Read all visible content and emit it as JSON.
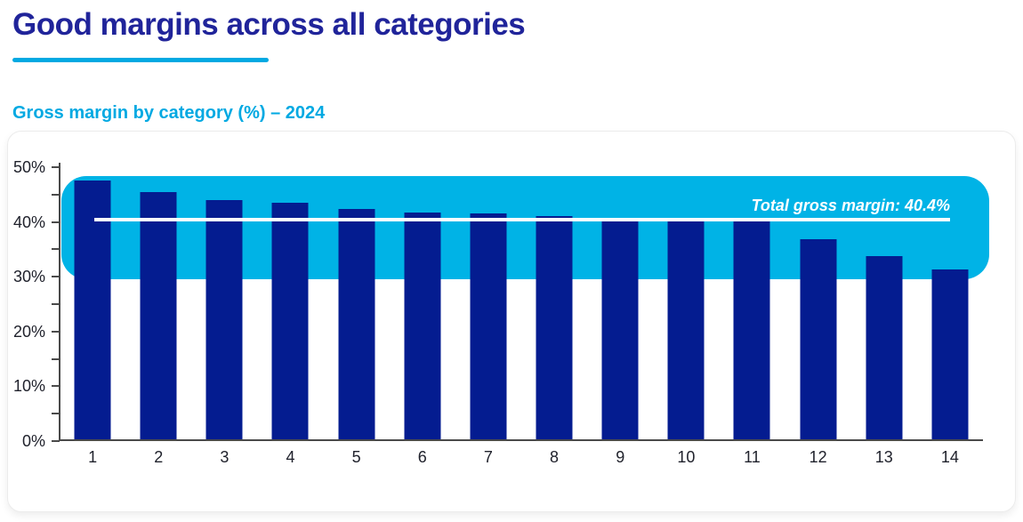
{
  "header": {
    "title": "Good margins across all categories",
    "subtitle": "Gross margin by category (%) – 2024"
  },
  "chart_data": {
    "type": "bar",
    "title": "Gross margin by category (%) – 2024",
    "categories": [
      "1",
      "2",
      "3",
      "4",
      "5",
      "6",
      "7",
      "8",
      "9",
      "10",
      "11",
      "12",
      "13",
      "14"
    ],
    "values": [
      47.5,
      45.4,
      44.0,
      43.5,
      42.4,
      41.8,
      41.6,
      41.0,
      40.7,
      40.2,
      40.1,
      36.8,
      33.7,
      31.3
    ],
    "xlabel": "",
    "ylabel": "",
    "ylim": [
      0,
      50
    ],
    "ytick_step": 10,
    "minor_tick_step": 5,
    "ytick_labels": [
      "0%",
      "10%",
      "20%",
      "30%",
      "40%",
      "50%"
    ],
    "grid": false,
    "legend": false,
    "reference_line": {
      "value": 40.4,
      "label": "Total gross margin: 40.4%"
    },
    "highlight_band": {
      "from": 29.5,
      "to": 48.4
    },
    "colors": {
      "bar": "#041C90",
      "band": "#00B3E6",
      "reference_line": "#FFFFFF",
      "title": "#20249A",
      "accent_cyan": "#00A9E2",
      "axis": "#4A4A4A",
      "tick_label": "#20222C"
    }
  }
}
